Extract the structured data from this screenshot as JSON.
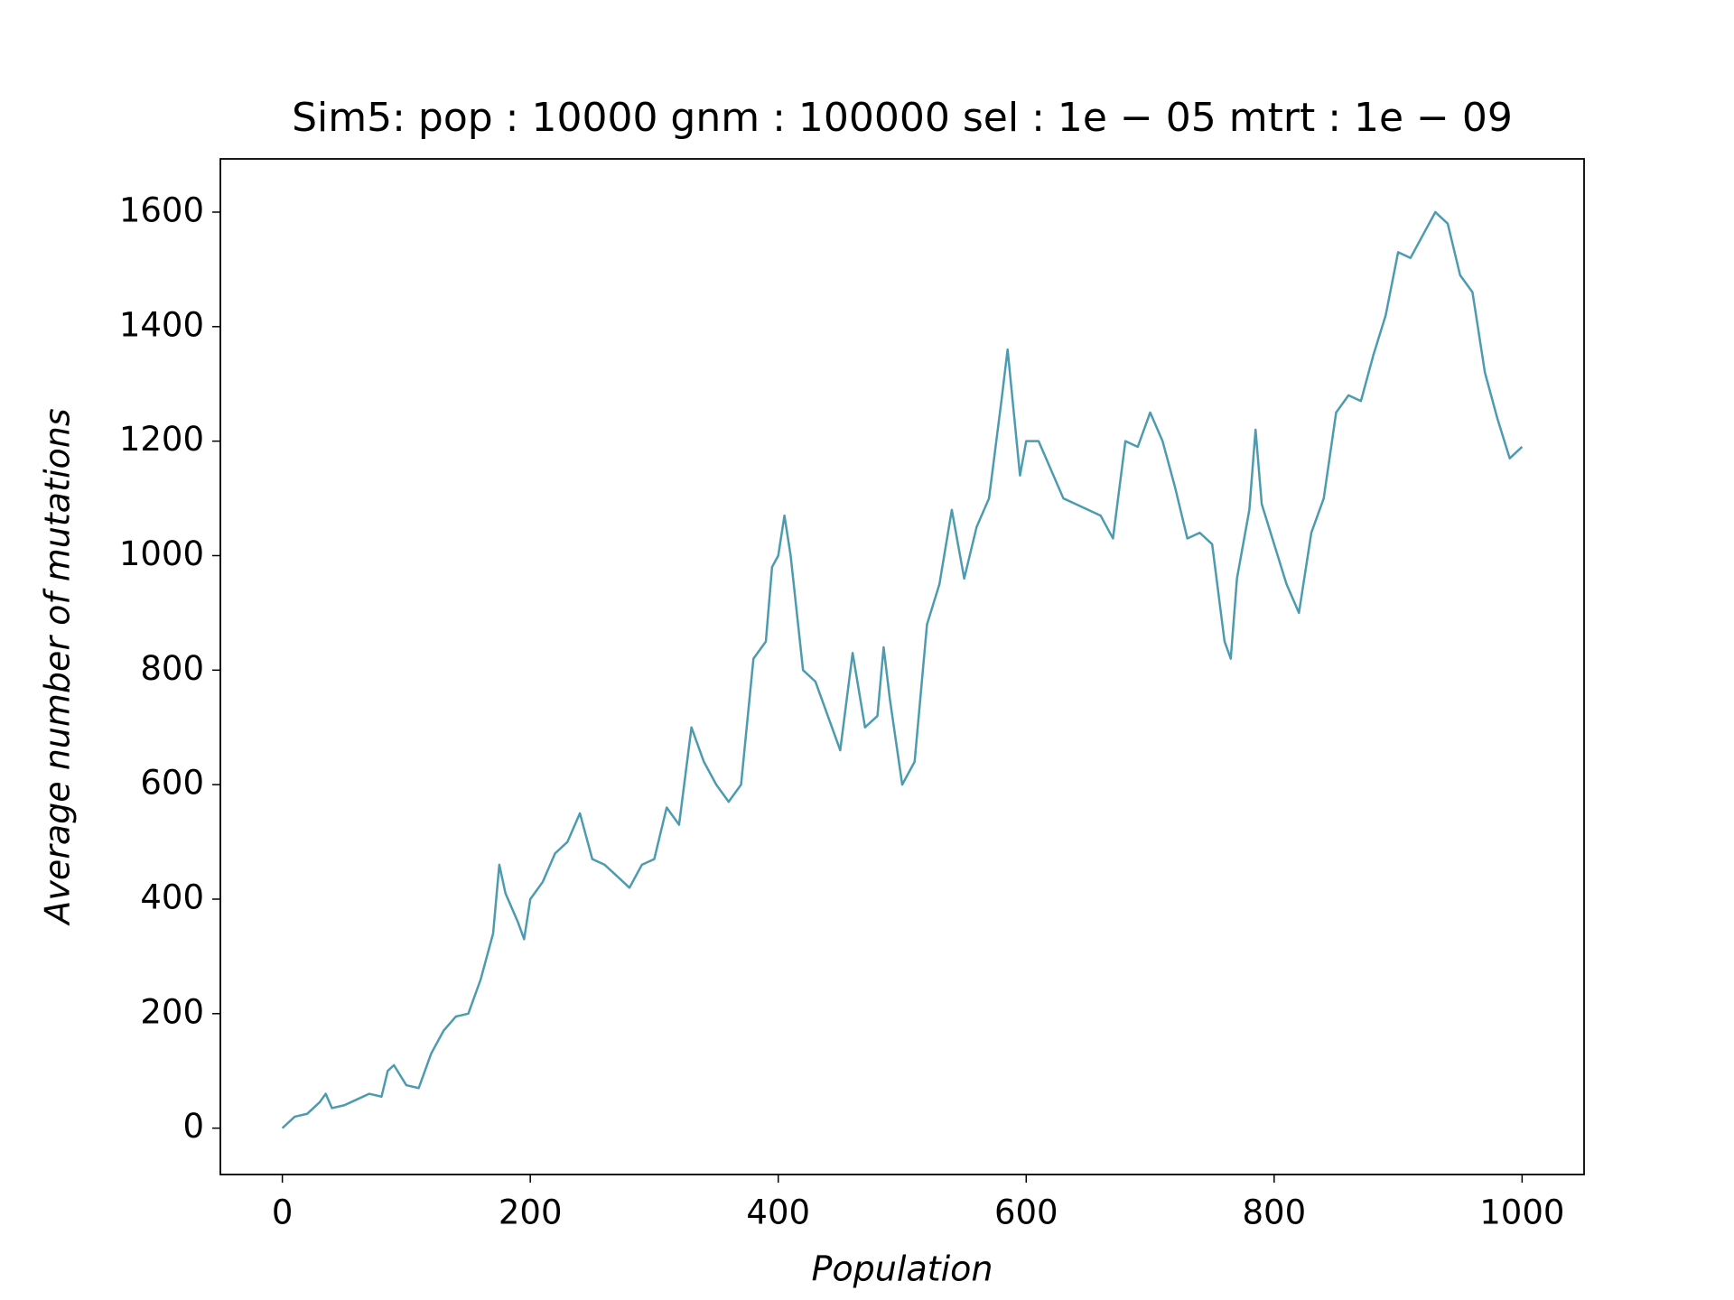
{
  "chart_data": {
    "type": "line",
    "title": "Sim5: pop : 10000 gnm : 100000 sel : 1e − 05 mtrt : 1e − 09",
    "xlabel": "Population",
    "ylabel": "Average number of mutations",
    "xlim": [
      -50,
      1050
    ],
    "ylim": [
      -81,
      1693
    ],
    "xticks": [
      0,
      200,
      400,
      600,
      800,
      1000
    ],
    "yticks": [
      0,
      200,
      400,
      600,
      800,
      1000,
      1200,
      1400,
      1600
    ],
    "series": [
      {
        "color": "#4c9bb0",
        "x": [
          0,
          10,
          20,
          30,
          35,
          40,
          50,
          60,
          70,
          80,
          85,
          90,
          100,
          110,
          120,
          130,
          140,
          150,
          160,
          170,
          175,
          180,
          190,
          195,
          200,
          210,
          220,
          230,
          240,
          250,
          260,
          270,
          280,
          290,
          300,
          310,
          320,
          330,
          340,
          350,
          360,
          370,
          380,
          390,
          395,
          400,
          405,
          410,
          420,
          430,
          440,
          450,
          460,
          470,
          480,
          485,
          490,
          500,
          510,
          520,
          530,
          540,
          550,
          560,
          570,
          580,
          585,
          590,
          595,
          600,
          610,
          620,
          630,
          640,
          650,
          660,
          670,
          680,
          690,
          700,
          710,
          720,
          730,
          740,
          750,
          760,
          765,
          770,
          780,
          785,
          790,
          800,
          810,
          820,
          830,
          840,
          850,
          860,
          870,
          880,
          890,
          900,
          910,
          920,
          930,
          940,
          950,
          960,
          970,
          980,
          990,
          1000
        ],
        "values": [
          0,
          20,
          25,
          45,
          60,
          35,
          40,
          50,
          60,
          55,
          100,
          110,
          75,
          70,
          130,
          170,
          195,
          200,
          260,
          340,
          460,
          410,
          360,
          330,
          400,
          430,
          480,
          500,
          550,
          470,
          460,
          440,
          420,
          460,
          470,
          560,
          530,
          700,
          640,
          600,
          570,
          600,
          820,
          850,
          980,
          1000,
          1070,
          1000,
          800,
          780,
          720,
          660,
          830,
          700,
          720,
          840,
          750,
          600,
          640,
          880,
          950,
          1080,
          960,
          1050,
          1100,
          1270,
          1360,
          1250,
          1140,
          1200,
          1200,
          1150,
          1100,
          1090,
          1080,
          1070,
          1030,
          1200,
          1190,
          1250,
          1200,
          1120,
          1030,
          1040,
          1020,
          850,
          820,
          960,
          1080,
          1220,
          1090,
          1020,
          950,
          900,
          1040,
          1100,
          1250,
          1280,
          1270,
          1350,
          1420,
          1530,
          1520,
          1560,
          1600,
          1580,
          1490,
          1460,
          1320,
          1240,
          1170,
          1190
        ]
      }
    ]
  }
}
